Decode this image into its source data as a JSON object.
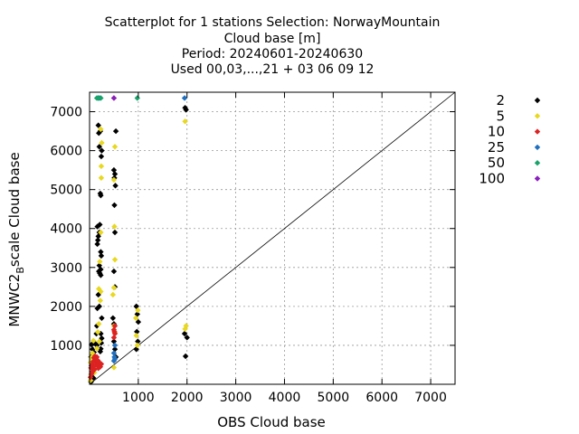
{
  "chart_data": {
    "type": "scatter",
    "title_lines": [
      "Scatterplot for    1 stations Selection: NorwayMountain",
      "Cloud base [m]",
      "Period: 20240601-20240630",
      "Used 00,03,...,21 + 03 06 09 12"
    ],
    "xlabel": "OBS Cloud base",
    "ylabel_main": "MNWC2",
    "ylabel_sub": "B",
    "ylabel_rest": "scale Cloud base",
    "xlim": [
      0,
      7500
    ],
    "ylim": [
      0,
      7500
    ],
    "xticks": [
      1000,
      2000,
      3000,
      4000,
      5000,
      6000,
      7000
    ],
    "yticks": [
      1000,
      2000,
      3000,
      4000,
      5000,
      6000,
      7000
    ],
    "grid": true,
    "diagonal": true,
    "legend_position": "right",
    "series": [
      {
        "name": "2",
        "color": "#000000",
        "points": [
          [
            30,
            60
          ],
          [
            40,
            200
          ],
          [
            60,
            330
          ],
          [
            40,
            480
          ],
          [
            30,
            700
          ],
          [
            60,
            900
          ],
          [
            40,
            1020
          ],
          [
            80,
            160
          ],
          [
            100,
            380
          ],
          [
            90,
            820
          ],
          [
            120,
            1040
          ],
          [
            140,
            1300
          ],
          [
            150,
            1500
          ],
          [
            160,
            1950
          ],
          [
            180,
            2300
          ],
          [
            190,
            2900
          ],
          [
            200,
            3050
          ],
          [
            160,
            3600
          ],
          [
            170,
            3700
          ],
          [
            180,
            3800
          ],
          [
            200,
            3900
          ],
          [
            160,
            4050
          ],
          [
            210,
            4100
          ],
          [
            220,
            4900
          ],
          [
            230,
            4850
          ],
          [
            240,
            5850
          ],
          [
            250,
            6000
          ],
          [
            180,
            6650
          ],
          [
            190,
            6450
          ],
          [
            200,
            6100
          ],
          [
            220,
            6500
          ],
          [
            230,
            3400
          ],
          [
            240,
            3300
          ],
          [
            230,
            2950
          ],
          [
            210,
            2850
          ],
          [
            230,
            2800
          ],
          [
            200,
            2000
          ],
          [
            150,
            1000
          ],
          [
            120,
            700
          ],
          [
            220,
            840
          ],
          [
            230,
            910
          ],
          [
            240,
            1060
          ],
          [
            250,
            1180
          ],
          [
            230,
            1300
          ],
          [
            250,
            1700
          ],
          [
            480,
            1700
          ],
          [
            500,
            1550
          ],
          [
            520,
            2500
          ],
          [
            500,
            2900
          ],
          [
            520,
            3900
          ],
          [
            510,
            4600
          ],
          [
            530,
            5100
          ],
          [
            500,
            5500
          ],
          [
            520,
            5400
          ],
          [
            510,
            5300
          ],
          [
            540,
            6500
          ],
          [
            500,
            1100
          ],
          [
            520,
            900
          ],
          [
            540,
            700
          ],
          [
            960,
            2000
          ],
          [
            980,
            1800
          ],
          [
            1000,
            1600
          ],
          [
            970,
            1350
          ],
          [
            990,
            1100
          ],
          [
            960,
            900
          ],
          [
            1960,
            7100
          ],
          [
            1980,
            7050
          ],
          [
            1950,
            1300
          ],
          [
            2000,
            1200
          ],
          [
            1970,
            720
          ]
        ]
      },
      {
        "name": "5",
        "color": "#e8d820",
        "points": [
          [
            20,
            100
          ],
          [
            30,
            250
          ],
          [
            40,
            400
          ],
          [
            20,
            560
          ],
          [
            40,
            690
          ],
          [
            60,
            800
          ],
          [
            80,
            1120
          ],
          [
            100,
            300
          ],
          [
            150,
            920
          ],
          [
            170,
            1340
          ],
          [
            190,
            1550
          ],
          [
            200,
            1100
          ],
          [
            220,
            2150
          ],
          [
            230,
            2380
          ],
          [
            190,
            2450
          ],
          [
            210,
            3150
          ],
          [
            230,
            3900
          ],
          [
            240,
            5300
          ],
          [
            240,
            5600
          ],
          [
            250,
            6200
          ],
          [
            230,
            6550
          ],
          [
            480,
            2300
          ],
          [
            500,
            2480
          ],
          [
            520,
            3200
          ],
          [
            510,
            4050
          ],
          [
            500,
            5250
          ],
          [
            520,
            6100
          ],
          [
            500,
            7350
          ],
          [
            500,
            1500
          ],
          [
            520,
            1320
          ],
          [
            500,
            430
          ],
          [
            980,
            1000
          ],
          [
            960,
            1250
          ],
          [
            950,
            1700
          ],
          [
            990,
            1900
          ],
          [
            1960,
            6750
          ],
          [
            1980,
            1500
          ],
          [
            1960,
            1420
          ]
        ]
      },
      {
        "name": "10",
        "color": "#dd2222",
        "points": [
          [
            20,
            180
          ],
          [
            40,
            260
          ],
          [
            60,
            320
          ],
          [
            80,
            450
          ],
          [
            100,
            380
          ],
          [
            120,
            600
          ],
          [
            140,
            520
          ],
          [
            160,
            480
          ],
          [
            180,
            410
          ],
          [
            200,
            560
          ],
          [
            220,
            450
          ],
          [
            240,
            520
          ],
          [
            30,
            420
          ],
          [
            50,
            510
          ],
          [
            70,
            580
          ],
          [
            90,
            680
          ],
          [
            110,
            720
          ],
          [
            130,
            640
          ],
          [
            150,
            700
          ],
          [
            170,
            610
          ],
          [
            500,
            1200
          ],
          [
            520,
            1300
          ],
          [
            500,
            1400
          ],
          [
            520,
            1500
          ],
          [
            510,
            1350
          ]
        ]
      },
      {
        "name": "25",
        "color": "#1f6fbf",
        "points": [
          [
            200,
            7350
          ],
          [
            520,
            1000
          ],
          [
            500,
            800
          ],
          [
            520,
            650
          ],
          [
            500,
            600
          ],
          [
            510,
            700
          ],
          [
            1950,
            7350
          ]
        ]
      },
      {
        "name": "50",
        "color": "#19a36a",
        "points": [
          [
            150,
            7350
          ],
          [
            180,
            7350
          ],
          [
            230,
            7350
          ],
          [
            980,
            7350
          ]
        ]
      },
      {
        "name": "100",
        "color": "#8a1fbf",
        "points": [
          [
            500,
            7350
          ]
        ]
      }
    ]
  }
}
